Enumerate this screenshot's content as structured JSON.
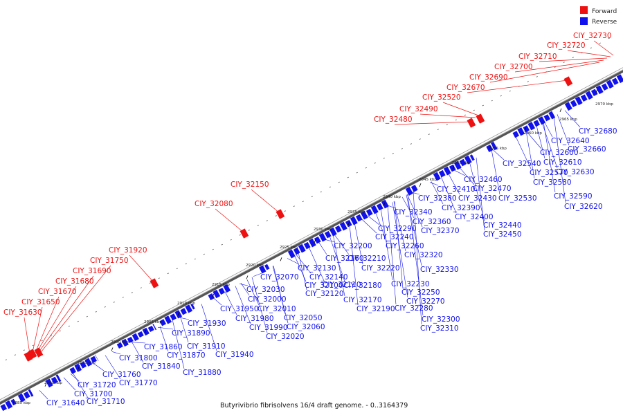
{
  "caption": "Butyrivibrio fibrisolvens 16/4 draft genome. - 0..3164379",
  "legend": [
    {
      "label": "Forward",
      "color": "#ee1111"
    },
    {
      "label": "Reverse",
      "color": "#1111ee"
    }
  ],
  "ticks": [
    "2885 kbp",
    "2890 kbp",
    "2895 kbp",
    "2900 kbp",
    "2905 kbp",
    "2910 kbp",
    "2915 kbp",
    "2920 kbp",
    "2925 kbp",
    "2930 kbp",
    "2935 kbp",
    "2940 kbp",
    "2945 kbp",
    "2950 kbp",
    "2955 kbp",
    "2960 kbp",
    "2965 kbp",
    "2970 kbp"
  ],
  "forward_genes": [
    "CIY_31630",
    "CIY_31650",
    "CIY_31670",
    "CIY_31680",
    "CIY_31690",
    "CIY_31750",
    "CIY_31920",
    "CIY_32080",
    "CIY_32150",
    "CIY_32480",
    "CIY_32490",
    "CIY_32520",
    "CIY_32670",
    "CIY_32690",
    "CIY_32700",
    "CIY_32710",
    "CIY_32720",
    "CIY_32730"
  ],
  "reverse_genes": [
    "CIY_31640",
    "CIY_31700",
    "CIY_31710",
    "CIY_31720",
    "CIY_31760",
    "CIY_31770",
    "CIY_31800",
    "CIY_31840",
    "CIY_31860",
    "CIY_31870",
    "CIY_31880",
    "CIY_31890",
    "CIY_31910",
    "CIY_31930",
    "CIY_31940",
    "CIY_31950",
    "CIY_31980",
    "CIY_31990",
    "CIY_32000",
    "CIY_32010",
    "CIY_32020",
    "CIY_32030",
    "CIY_32050",
    "CIY_32060",
    "CIY_32070",
    "CIY_32100",
    "CIY_32110",
    "CIY_32120",
    "CIY_32130",
    "CIY_32140",
    "CIY_32160",
    "CIY_32170",
    "CIY_32180",
    "CIY_32190",
    "CIY_32200",
    "CIY_32210",
    "CIY_32220",
    "CIY_32230",
    "CIY_32240",
    "CIY_32250",
    "CIY_32260",
    "CIY_32270",
    "CIY_32280",
    "CIY_32290",
    "CIY_32300",
    "CIY_32310",
    "CIY_32320",
    "CIY_32330",
    "CIY_32340",
    "CIY_32360",
    "CIY_32370",
    "CIY_32380",
    "CIY_32390",
    "CIY_32400",
    "CIY_32410",
    "CIY_32430",
    "CIY_32440",
    "CIY_32450",
    "CIY_32460",
    "CIY_32470",
    "CIY_32530",
    "CIY_32540",
    "CIY_32570",
    "CIY_32580",
    "CIY_32590",
    "CIY_32600",
    "CIY_32610",
    "CIY_32620",
    "CIY_32630",
    "CIY_32640",
    "CIY_32660",
    "CIY_32680"
  ]
}
